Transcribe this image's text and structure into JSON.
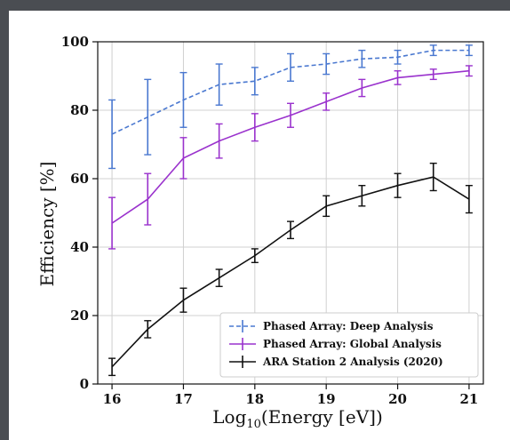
{
  "chart_data": {
    "type": "line",
    "xlabel_main": "Log",
    "xlabel_sub": "10",
    "xlabel_rest": "(Energy [eV])",
    "ylabel": "Efficiency [%]",
    "xlim": [
      15.8,
      21.2
    ],
    "ylim": [
      0,
      100
    ],
    "x_ticks": [
      16,
      17,
      18,
      19,
      20,
      21
    ],
    "y_ticks": [
      0,
      20,
      40,
      60,
      80,
      100
    ],
    "grid": true,
    "legend_position": "lower-right",
    "x": [
      16,
      16.5,
      17,
      17.5,
      18,
      18.5,
      19,
      19.5,
      20,
      20.5,
      21
    ],
    "series": [
      {
        "name": "Phased Array: Deep Analysis",
        "color": "#4a78d0",
        "dashed": true,
        "values": [
          73,
          78,
          83,
          87.5,
          88.5,
          92.5,
          93.5,
          95,
          95.5,
          97.5,
          97.5
        ],
        "errors": [
          10,
          11,
          8,
          6,
          4,
          4,
          3,
          2.5,
          2,
          1.5,
          1.5
        ]
      },
      {
        "name": "Phased Array: Global Analysis",
        "color": "#9a32cd",
        "dashed": false,
        "values": [
          47,
          54,
          66,
          71,
          75,
          78.5,
          82.5,
          86.5,
          89.5,
          90.5,
          91.5
        ],
        "errors": [
          7.5,
          7.5,
          6,
          5,
          4,
          3.5,
          2.5,
          2.5,
          2,
          1.5,
          1.5
        ]
      },
      {
        "name": "ARA Station 2 Analysis (2020)",
        "color": "#111111",
        "dashed": false,
        "values": [
          5,
          16,
          24.5,
          31,
          37.5,
          45,
          52,
          55,
          58,
          60.5,
          54
        ],
        "errors": [
          2.5,
          2.5,
          3.5,
          2.5,
          2,
          2.5,
          3,
          3,
          3.5,
          4,
          4
        ]
      }
    ]
  }
}
